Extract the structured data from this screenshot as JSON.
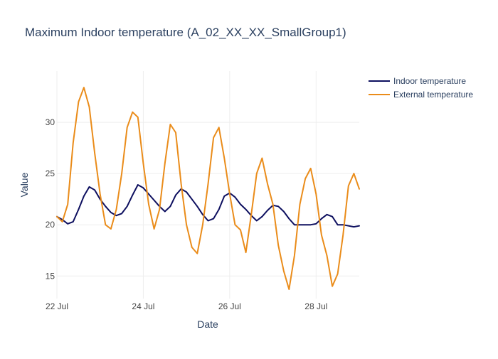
{
  "chart_data": {
    "type": "line",
    "title": "Maximum Indoor temperature (A_02_XX_XX_SmallGroup1)",
    "xlabel": "Date",
    "ylabel": "Value",
    "x_range": [
      "2021-07-22T00:00",
      "2021-07-29T00:00"
    ],
    "ylim": [
      12.8,
      35.0
    ],
    "x_ticks": [
      {
        "x": "2021-07-22T00:00",
        "label": "22 Jul"
      },
      {
        "x": "2021-07-24T00:00",
        "label": "24 Jul"
      },
      {
        "x": "2021-07-26T00:00",
        "label": "26 Jul"
      },
      {
        "x": "2021-07-28T00:00",
        "label": "28 Jul"
      }
    ],
    "y_ticks": [
      15,
      20,
      25,
      30
    ],
    "grid": true,
    "legend": "top-right",
    "series": [
      {
        "name": "Indoor temperature",
        "color": "#0d0f5f",
        "x": [
          "2021-07-22T00:00",
          "2021-07-22T03:00",
          "2021-07-22T06:00",
          "2021-07-22T09:00",
          "2021-07-22T12:00",
          "2021-07-22T15:00",
          "2021-07-22T18:00",
          "2021-07-22T21:00",
          "2021-07-23T00:00",
          "2021-07-23T03:00",
          "2021-07-23T06:00",
          "2021-07-23T09:00",
          "2021-07-23T12:00",
          "2021-07-23T15:00",
          "2021-07-23T18:00",
          "2021-07-23T21:00",
          "2021-07-24T00:00",
          "2021-07-24T03:00",
          "2021-07-24T06:00",
          "2021-07-24T09:00",
          "2021-07-24T12:00",
          "2021-07-24T15:00",
          "2021-07-24T18:00",
          "2021-07-24T21:00",
          "2021-07-25T00:00",
          "2021-07-25T03:00",
          "2021-07-25T06:00",
          "2021-07-25T09:00",
          "2021-07-25T12:00",
          "2021-07-25T15:00",
          "2021-07-25T18:00",
          "2021-07-25T21:00",
          "2021-07-26T00:00",
          "2021-07-26T03:00",
          "2021-07-26T06:00",
          "2021-07-26T09:00",
          "2021-07-26T12:00",
          "2021-07-26T15:00",
          "2021-07-26T18:00",
          "2021-07-26T21:00",
          "2021-07-27T00:00",
          "2021-07-27T03:00",
          "2021-07-27T06:00",
          "2021-07-27T09:00",
          "2021-07-27T12:00",
          "2021-07-27T15:00",
          "2021-07-27T18:00",
          "2021-07-27T21:00",
          "2021-07-28T00:00",
          "2021-07-28T03:00",
          "2021-07-28T06:00",
          "2021-07-28T09:00",
          "2021-07-28T12:00",
          "2021-07-28T15:00",
          "2021-07-28T18:00",
          "2021-07-28T21:00",
          "2021-07-29T00:00"
        ],
        "y": [
          20.8,
          20.5,
          20.1,
          20.3,
          21.5,
          22.8,
          23.7,
          23.4,
          22.5,
          21.8,
          21.2,
          20.9,
          21.1,
          21.8,
          22.9,
          23.9,
          23.6,
          23.0,
          22.4,
          21.8,
          21.3,
          21.8,
          22.9,
          23.5,
          23.2,
          22.5,
          21.8,
          21.0,
          20.4,
          20.6,
          21.5,
          22.8,
          23.1,
          22.7,
          22.0,
          21.5,
          20.9,
          20.4,
          20.8,
          21.4,
          21.9,
          21.8,
          21.3,
          20.6,
          20.0,
          20.0,
          20.0,
          20.0,
          20.1,
          20.6,
          21.0,
          20.8,
          20.0,
          20.0,
          19.9,
          19.8,
          19.9
        ]
      },
      {
        "name": "External temperature",
        "color": "#ea8c1a",
        "x": [
          "2021-07-22T00:00",
          "2021-07-22T03:00",
          "2021-07-22T06:00",
          "2021-07-22T09:00",
          "2021-07-22T12:00",
          "2021-07-22T15:00",
          "2021-07-22T18:00",
          "2021-07-22T21:00",
          "2021-07-23T00:00",
          "2021-07-23T03:00",
          "2021-07-23T06:00",
          "2021-07-23T09:00",
          "2021-07-23T12:00",
          "2021-07-23T15:00",
          "2021-07-23T18:00",
          "2021-07-23T21:00",
          "2021-07-24T00:00",
          "2021-07-24T03:00",
          "2021-07-24T06:00",
          "2021-07-24T09:00",
          "2021-07-24T12:00",
          "2021-07-24T15:00",
          "2021-07-24T18:00",
          "2021-07-24T21:00",
          "2021-07-25T00:00",
          "2021-07-25T03:00",
          "2021-07-25T06:00",
          "2021-07-25T09:00",
          "2021-07-25T12:00",
          "2021-07-25T15:00",
          "2021-07-25T18:00",
          "2021-07-25T21:00",
          "2021-07-26T00:00",
          "2021-07-26T03:00",
          "2021-07-26T06:00",
          "2021-07-26T09:00",
          "2021-07-26T12:00",
          "2021-07-26T15:00",
          "2021-07-26T18:00",
          "2021-07-26T21:00",
          "2021-07-27T00:00",
          "2021-07-27T03:00",
          "2021-07-27T06:00",
          "2021-07-27T09:00",
          "2021-07-27T12:00",
          "2021-07-27T15:00",
          "2021-07-27T18:00",
          "2021-07-27T21:00",
          "2021-07-28T00:00",
          "2021-07-28T03:00",
          "2021-07-28T06:00",
          "2021-07-28T09:00",
          "2021-07-28T12:00",
          "2021-07-28T15:00",
          "2021-07-28T18:00",
          "2021-07-28T21:00",
          "2021-07-29T00:00"
        ],
        "y": [
          20.8,
          20.3,
          22.0,
          28.0,
          32.0,
          33.4,
          31.5,
          27.0,
          23.0,
          20.0,
          19.6,
          21.5,
          25.0,
          29.5,
          31.0,
          30.5,
          26.0,
          22.0,
          19.6,
          21.5,
          26.0,
          29.8,
          29.0,
          24.0,
          20.0,
          17.8,
          17.2,
          20.0,
          24.0,
          28.5,
          29.5,
          26.5,
          23.0,
          20.0,
          19.5,
          17.3,
          21.0,
          25.0,
          26.5,
          24.0,
          22.0,
          18.0,
          15.5,
          13.7,
          17.0,
          22.0,
          24.5,
          25.5,
          23.0,
          19.0,
          17.0,
          14.0,
          15.2,
          19.0,
          23.8,
          25.0,
          23.5
        ]
      }
    ]
  }
}
